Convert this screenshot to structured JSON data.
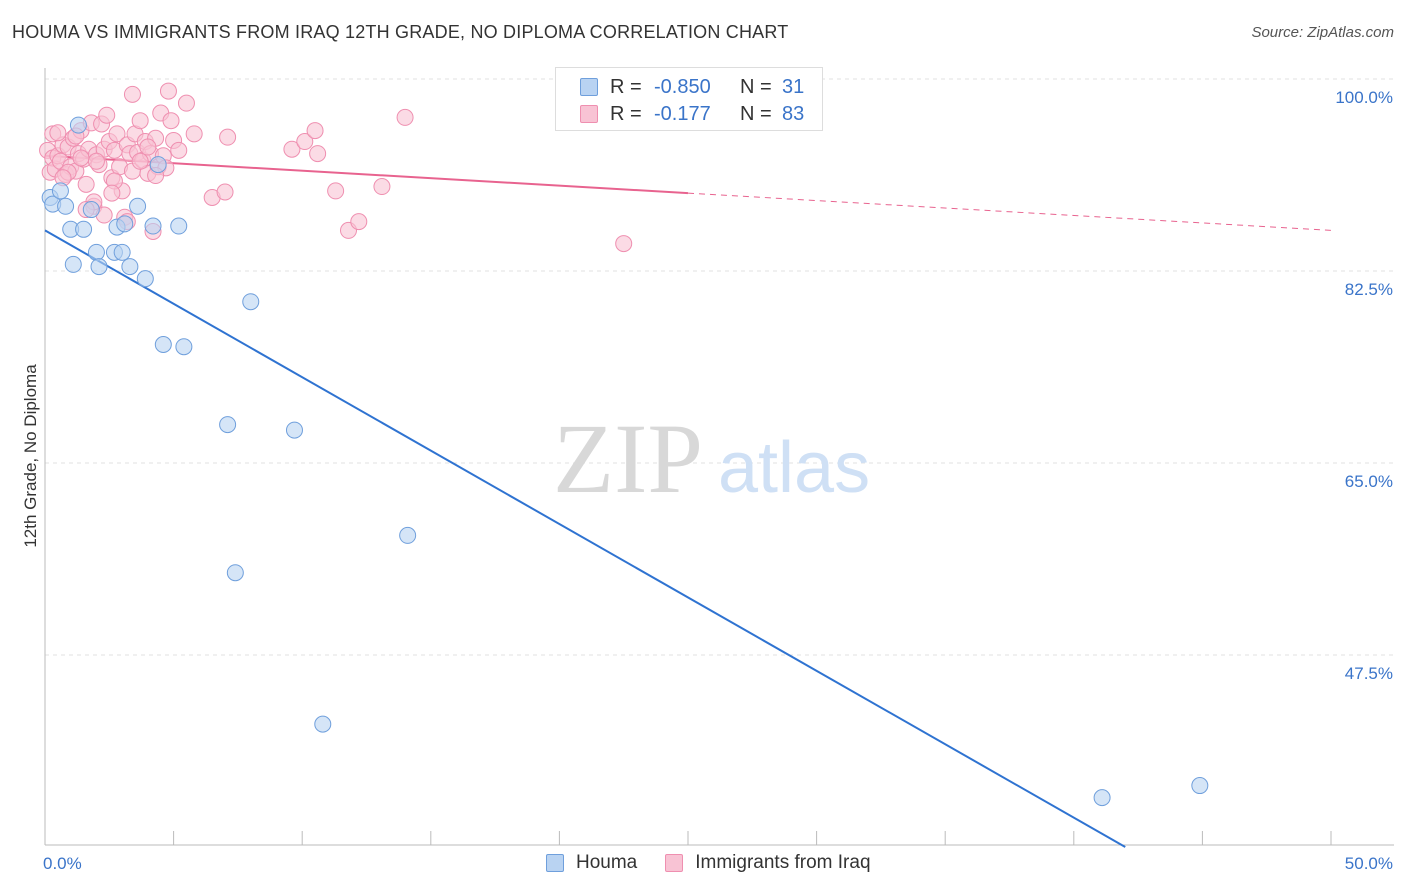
{
  "title": "HOUMA VS IMMIGRANTS FROM IRAQ 12TH GRADE, NO DIPLOMA CORRELATION CHART",
  "source": "Source: ZipAtlas.com",
  "watermark": {
    "zip": "ZIP",
    "atlas": "atlas"
  },
  "legend": {
    "rows": [
      {
        "r_label": "R =",
        "r_value": "-0.850",
        "n_label": "N =",
        "n_value": "31"
      },
      {
        "r_label": "R =",
        "r_value": "-0.177",
        "n_label": "N =",
        "n_value": "83"
      }
    ]
  },
  "bottom_legend": {
    "houma": "Houma",
    "iraq": "Immigrants from Iraq"
  },
  "colors": {
    "houma_fill": "#b9d3f2",
    "houma_stroke": "#6f9fdc",
    "houma_line": "#2f73d1",
    "iraq_fill": "#f8c3d4",
    "iraq_stroke": "#ef8fb0",
    "iraq_line": "#e8638f",
    "axis_text": "#3a74c9",
    "grid": "#e2e2e2"
  },
  "chart_data": {
    "type": "scatter",
    "title": "HOUMA VS IMMIGRANTS FROM IRAQ 12TH GRADE, NO DIPLOMA CORRELATION CHART",
    "xlabel": "",
    "ylabel": "12th Grade, No Diploma",
    "xlim": [
      0,
      50
    ],
    "ylim": [
      29.5,
      101.5
    ],
    "x_tick_labels": [
      "0.0%",
      "50.0%"
    ],
    "y_ticks": [
      100.0,
      82.5,
      65.0,
      47.5
    ],
    "y_tick_labels": [
      "100.0%",
      "82.5%",
      "65.0%",
      "47.5%"
    ],
    "grid": true,
    "series": [
      {
        "name": "Houma",
        "r": -0.85,
        "n": 31,
        "points": [
          [
            0.2,
            89.2
          ],
          [
            0.3,
            88.6
          ],
          [
            0.6,
            89.8
          ],
          [
            0.8,
            88.4
          ],
          [
            1.0,
            86.3
          ],
          [
            1.1,
            83.1
          ],
          [
            1.5,
            86.3
          ],
          [
            1.3,
            95.8
          ],
          [
            1.8,
            88.1
          ],
          [
            2.0,
            84.2
          ],
          [
            2.1,
            82.9
          ],
          [
            2.7,
            84.2
          ],
          [
            2.8,
            86.5
          ],
          [
            3.1,
            86.8
          ],
          [
            3.0,
            84.2
          ],
          [
            3.3,
            82.9
          ],
          [
            3.6,
            88.4
          ],
          [
            3.9,
            81.8
          ],
          [
            4.2,
            86.6
          ],
          [
            4.4,
            92.2
          ],
          [
            4.6,
            75.8
          ],
          [
            5.2,
            86.6
          ],
          [
            5.4,
            75.6
          ],
          [
            7.1,
            68.5
          ],
          [
            7.4,
            55.0
          ],
          [
            8.0,
            79.7
          ],
          [
            9.7,
            68.0
          ],
          [
            10.8,
            41.2
          ],
          [
            14.1,
            58.4
          ],
          [
            41.1,
            34.5
          ],
          [
            44.9,
            35.6
          ]
        ],
        "trend": {
          "x": [
            0,
            42.0
          ],
          "y": [
            86.2,
            30.0
          ]
        }
      },
      {
        "name": "Immigrants from Iraq",
        "r": -0.177,
        "n": 83,
        "points": [
          [
            0.1,
            93.5
          ],
          [
            0.2,
            91.5
          ],
          [
            0.3,
            92.8
          ],
          [
            0.3,
            95.0
          ],
          [
            0.4,
            91.8
          ],
          [
            0.5,
            93.0
          ],
          [
            0.6,
            92.5
          ],
          [
            0.7,
            94.0
          ],
          [
            0.8,
            91.3
          ],
          [
            0.9,
            93.8
          ],
          [
            1.0,
            92.0
          ],
          [
            1.1,
            94.6
          ],
          [
            1.2,
            91.6
          ],
          [
            1.3,
            93.2
          ],
          [
            1.4,
            95.3
          ],
          [
            1.5,
            92.7
          ],
          [
            1.6,
            90.4
          ],
          [
            1.7,
            93.6
          ],
          [
            1.8,
            96.0
          ],
          [
            1.9,
            88.4
          ],
          [
            2.0,
            93.1
          ],
          [
            2.1,
            92.2
          ],
          [
            2.2,
            95.9
          ],
          [
            2.3,
            93.6
          ],
          [
            2.4,
            96.7
          ],
          [
            2.5,
            94.3
          ],
          [
            2.6,
            91.0
          ],
          [
            2.7,
            93.5
          ],
          [
            2.8,
            95.0
          ],
          [
            2.9,
            92.0
          ],
          [
            3.0,
            89.8
          ],
          [
            3.1,
            87.4
          ],
          [
            3.2,
            94.0
          ],
          [
            3.3,
            93.2
          ],
          [
            3.4,
            91.6
          ],
          [
            3.5,
            95.0
          ],
          [
            3.6,
            93.3
          ],
          [
            3.7,
            96.2
          ],
          [
            3.8,
            92.6
          ],
          [
            3.9,
            94.3
          ],
          [
            4.0,
            91.4
          ],
          [
            4.1,
            93.2
          ],
          [
            4.2,
            86.1
          ],
          [
            4.3,
            94.6
          ],
          [
            4.4,
            92.0
          ],
          [
            4.5,
            96.9
          ],
          [
            4.6,
            93.0
          ],
          [
            4.7,
            91.9
          ],
          [
            4.8,
            98.9
          ],
          [
            4.9,
            96.2
          ],
          [
            5.0,
            94.4
          ],
          [
            5.2,
            93.5
          ],
          [
            5.5,
            97.8
          ],
          [
            5.8,
            95.0
          ],
          [
            6.5,
            89.2
          ],
          [
            7.0,
            89.7
          ],
          [
            7.1,
            94.7
          ],
          [
            9.6,
            93.6
          ],
          [
            10.1,
            94.3
          ],
          [
            10.5,
            95.3
          ],
          [
            10.6,
            93.2
          ],
          [
            11.3,
            89.8
          ],
          [
            11.8,
            86.2
          ],
          [
            12.2,
            87.0
          ],
          [
            13.1,
            90.2
          ],
          [
            14.0,
            96.5
          ],
          [
            22.5,
            85.0
          ],
          [
            3.2,
            87.0
          ],
          [
            1.9,
            88.8
          ],
          [
            0.9,
            91.5
          ],
          [
            1.4,
            92.8
          ],
          [
            0.5,
            95.1
          ],
          [
            3.4,
            98.6
          ],
          [
            2.3,
            87.6
          ],
          [
            2.7,
            90.7
          ],
          [
            4.3,
            91.2
          ],
          [
            1.2,
            94.8
          ],
          [
            0.7,
            91.0
          ],
          [
            2.0,
            92.5
          ],
          [
            3.7,
            92.5
          ],
          [
            4.0,
            93.8
          ],
          [
            2.6,
            89.6
          ],
          [
            1.6,
            88.1
          ]
        ],
        "trend": {
          "x": [
            0,
            25.0,
            50
          ],
          "y": [
            93.0,
            89.6,
            86.2
          ]
        }
      }
    ]
  }
}
